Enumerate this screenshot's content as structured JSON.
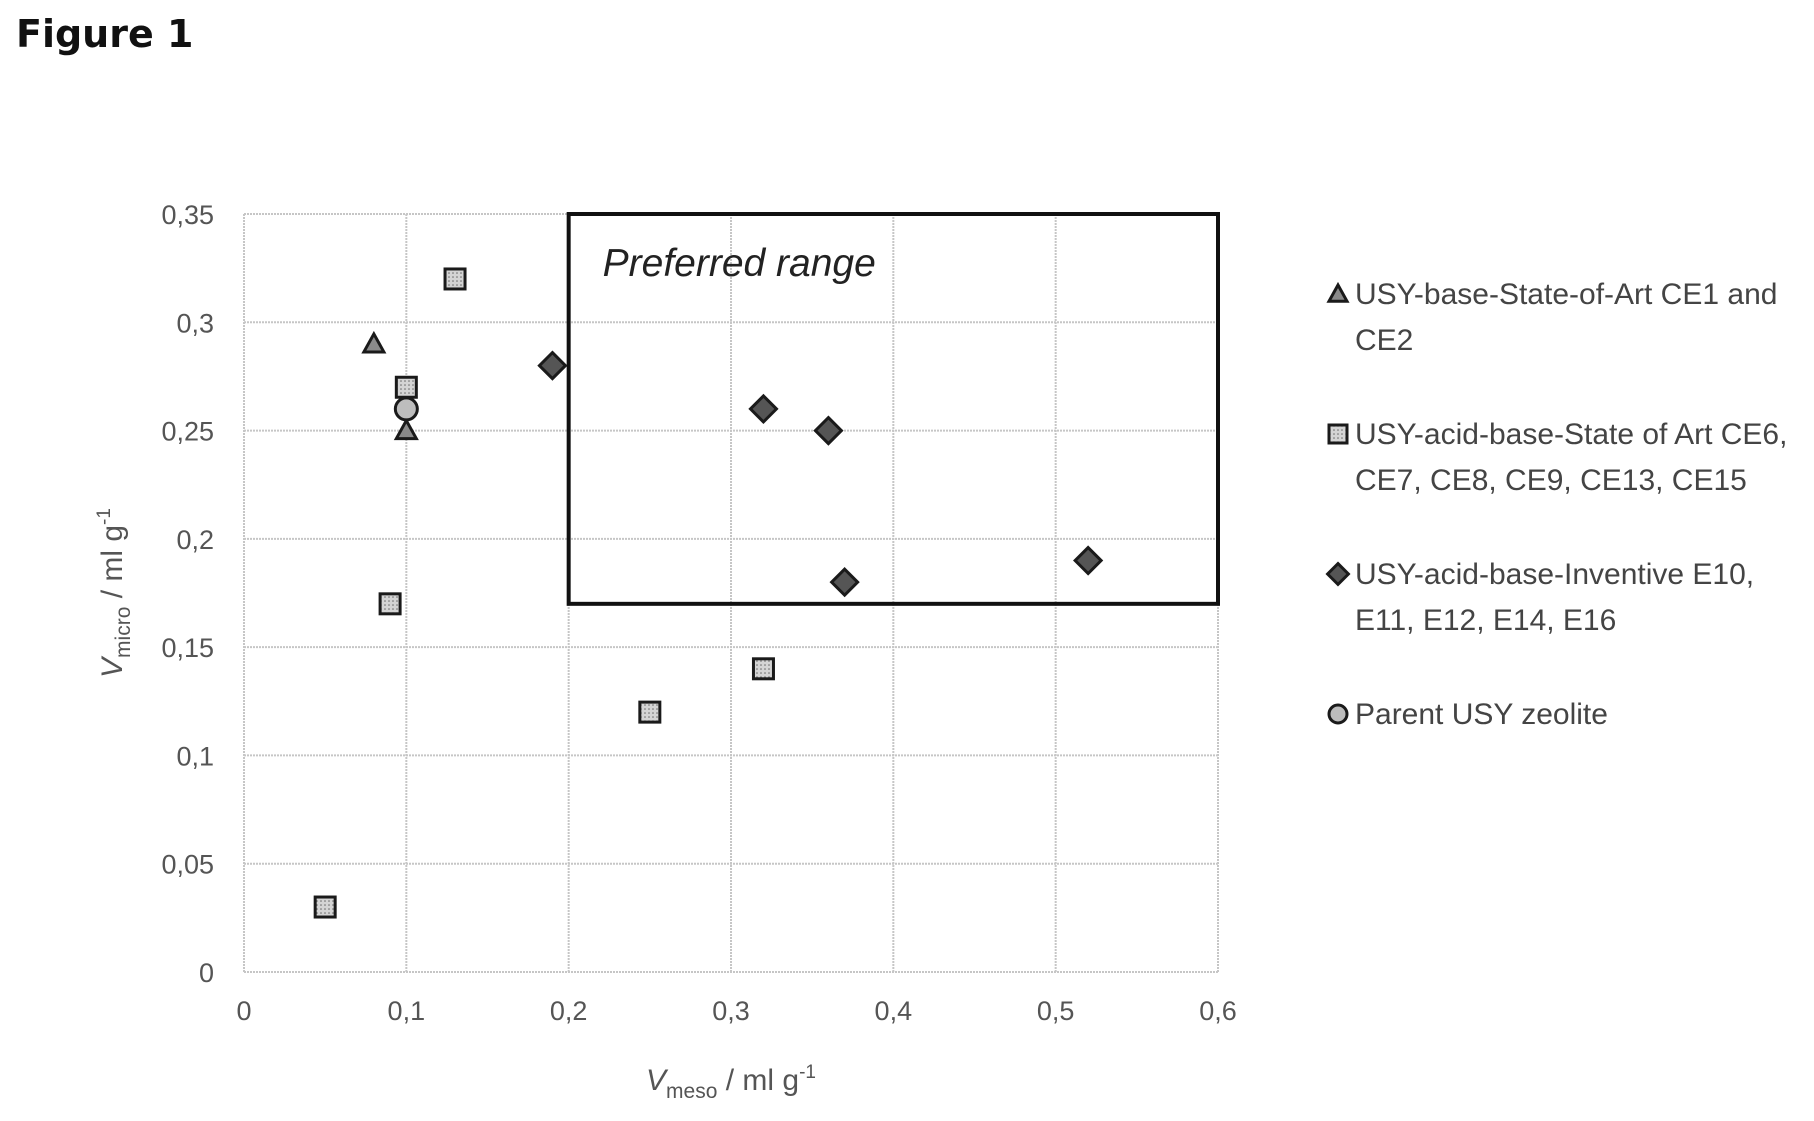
{
  "figure_title": "Figure 1",
  "chart_data": {
    "type": "scatter",
    "xlabel": {
      "symbol": "V",
      "sub": "meso",
      "unit": " / ml g",
      "sup": "-1"
    },
    "ylabel": {
      "symbol": "V",
      "sub": "micro",
      "unit": " / ml g",
      "sup": "-1"
    },
    "xlim": [
      0,
      0.6
    ],
    "ylim": [
      0,
      0.35
    ],
    "x_ticks": [
      0,
      0.1,
      0.2,
      0.3,
      0.4,
      0.5,
      0.6
    ],
    "y_ticks": [
      0,
      0.05,
      0.1,
      0.15,
      0.2,
      0.25,
      0.3,
      0.35
    ],
    "x_tick_labels": [
      "0",
      "0,1",
      "0,2",
      "0,3",
      "0,4",
      "0,5",
      "0,6"
    ],
    "y_tick_labels": [
      "0",
      "0,05",
      "0,1",
      "0,15",
      "0,2",
      "0,25",
      "0,3",
      "0,35"
    ],
    "grid": true,
    "legend_position": "right",
    "preferred_range": {
      "label": "Preferred range",
      "x": [
        0.2,
        0.6
      ],
      "y": [
        0.17,
        0.35
      ]
    },
    "series": [
      {
        "name": "USY-base-State-of-Art CE1 and CE2",
        "marker": "triangle",
        "color": "#8a8a8a",
        "points": [
          [
            0.08,
            0.29
          ],
          [
            0.1,
            0.25
          ]
        ]
      },
      {
        "name": "USY-acid-base-State of Art CE6, CE7, CE8, CE9, CE13, CE15",
        "marker": "square",
        "color": "#7a7a7a",
        "points": [
          [
            0.05,
            0.03
          ],
          [
            0.09,
            0.17
          ],
          [
            0.1,
            0.27
          ],
          [
            0.13,
            0.32
          ],
          [
            0.25,
            0.12
          ],
          [
            0.32,
            0.14
          ]
        ]
      },
      {
        "name": "USY-acid-base-Inventive E10, E11, E12, E14, E16",
        "marker": "diamond",
        "color": "#555555",
        "points": [
          [
            0.19,
            0.28
          ],
          [
            0.32,
            0.26
          ],
          [
            0.36,
            0.25
          ],
          [
            0.37,
            0.18
          ],
          [
            0.52,
            0.19
          ]
        ]
      },
      {
        "name": "Parent USY zeolite",
        "marker": "circle",
        "color": "#bdbdbd",
        "points": [
          [
            0.1,
            0.26
          ]
        ]
      }
    ]
  }
}
